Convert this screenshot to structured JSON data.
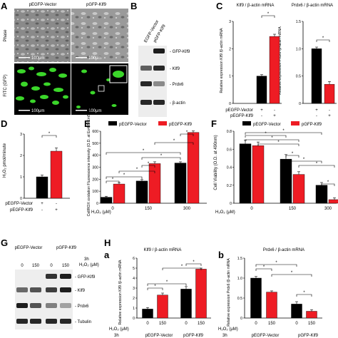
{
  "panels": {
    "A": {
      "letter": "A",
      "col_labels": [
        "pEGFP-Vector",
        "pGFP-Klf9"
      ],
      "row_labels": [
        "Phase",
        "FITC (GFP)"
      ],
      "scale_bar": "100μm"
    },
    "B": {
      "letter": "B",
      "lanes": [
        "EGFP-Vector",
        "pGFP-Klf9"
      ],
      "bands": [
        "GFP-Klf9",
        "Klf9",
        "Prdx6",
        "β-actin"
      ]
    },
    "C": {
      "letter": "C",
      "charts": [
        {
          "title": "Klf9 / β-actin mRNA",
          "ylabel": "Relative expression Klf9 /β-actin mRNA",
          "ylim": [
            0,
            3
          ],
          "yticks": [
            "0",
            "1",
            "2",
            "3"
          ],
          "values": [
            1.0,
            2.45
          ],
          "errors": [
            0.05,
            0.08
          ],
          "colors": [
            "#000000",
            "#ee1c24"
          ],
          "sig": "*"
        },
        {
          "title": "Prdx6 / β-actin mRNA",
          "ylabel": "Relative expression Prdx6 /β-actin mRNA",
          "ylim": [
            0,
            1.5
          ],
          "yticks": [
            "0",
            "0.5",
            "1.0",
            "1.5"
          ],
          "values": [
            1.0,
            0.35
          ],
          "errors": [
            0.03,
            0.05
          ],
          "colors": [
            "#000000",
            "#ee1c24"
          ],
          "sig": "*"
        }
      ],
      "rows": [
        "pEGFP-Vector",
        "pEGFP-Klf9"
      ],
      "signs": [
        [
          "+",
          "-"
        ],
        [
          "-",
          "+"
        ]
      ]
    },
    "D": {
      "letter": "D",
      "ylabel": "H₂O₂ pmol/minute",
      "ylim": [
        0,
        3
      ],
      "yticks": [
        "0",
        "1",
        "2",
        "3"
      ],
      "values": [
        1.0,
        2.2
      ],
      "errors": [
        0.08,
        0.15
      ],
      "colors": [
        "#000000",
        "#ee1c24"
      ],
      "sig": "*",
      "rows": [
        "pEGFP-Vector",
        "pEGFP-Klf9"
      ],
      "signs": [
        [
          "+",
          "-"
        ],
        [
          "-",
          "+"
        ]
      ]
    },
    "E": {
      "letter": "E",
      "legend": [
        "pEGFP-Vector",
        "pEGFP-Klf9"
      ],
      "ylabel": "CellROX oxidation Fluorescence intensity (O.D. at Ex485/Em520)",
      "ylim": [
        0,
        600
      ],
      "yticks": [
        "0",
        "100",
        "200",
        "300",
        "400",
        "500",
        "600"
      ],
      "xlabel": "H₂O₂ (μM)",
      "categories": [
        "0",
        "150",
        "300"
      ],
      "series": [
        {
          "name": "pEGFP-Vector",
          "color": "#000000",
          "values": [
            50,
            185,
            335
          ],
          "errors": [
            8,
            12,
            10
          ]
        },
        {
          "name": "pEGFP-Klf9",
          "color": "#ee1c24",
          "values": [
            160,
            330,
            590
          ],
          "errors": [
            12,
            15,
            12
          ]
        }
      ],
      "sig": "*"
    },
    "F": {
      "letter": "F",
      "legend": [
        "pEGFP-Vector",
        "pGFP-Klf9"
      ],
      "ylabel": "Cell Viability (O.D. at 490nm)",
      "ylim": [
        0,
        0.8
      ],
      "yticks": [
        "0",
        "0.2",
        "0.4",
        "0.6",
        "0.8"
      ],
      "xlabel": "H₂O₂ (μM)",
      "categories": [
        "0",
        "150",
        "300"
      ],
      "series": [
        {
          "name": "pEGFP-Vector",
          "color": "#000000",
          "values": [
            0.66,
            0.49,
            0.2
          ],
          "errors": [
            0.04,
            0.05,
            0.03
          ]
        },
        {
          "name": "pGFP-Klf9",
          "color": "#ee1c24",
          "values": [
            0.64,
            0.32,
            0.04
          ],
          "errors": [
            0.04,
            0.03,
            0.02
          ]
        }
      ],
      "sig": "*"
    },
    "G": {
      "letter": "G",
      "groups": [
        "pEGFP-Vector",
        "pGFP-Klf9"
      ],
      "time": "3h",
      "conc_label": "H₂O₂ (μM)",
      "concs": [
        "0",
        "150",
        "0",
        "150"
      ],
      "bands": [
        "GFP-Klf9",
        "Klf9",
        "Prdx6",
        "Tubulin"
      ]
    },
    "H": {
      "letter": "H",
      "sub": [
        {
          "letter": "a",
          "title": "Klf9 / β-actin mRNA",
          "ylabel": "Relative expression Klf9 /β-actin mRNA",
          "ylim": [
            0,
            6
          ],
          "yticks": [
            "0",
            "1",
            "2",
            "3",
            "4",
            "5",
            "6"
          ],
          "categories": [
            "0",
            "150",
            "0",
            "150"
          ],
          "values": [
            0.9,
            2.3,
            2.9,
            4.9
          ],
          "errors": [
            0.15,
            0.2,
            0.25,
            0.1
          ],
          "colors": [
            "#000000",
            "#ee1c24",
            "#000000",
            "#ee1c24"
          ],
          "groups": [
            "pEGFP-Vector",
            "pGFP-Klf9"
          ],
          "time": "3h",
          "xlabel": "H₂O₂ (μM)",
          "sig": "*"
        },
        {
          "letter": "b",
          "title": "Prdx6 / β-actin mRNA",
          "ylabel": "Relative expression Prdx6 /β-actin mRNA",
          "ylim": [
            0,
            1.5
          ],
          "yticks": [
            "0",
            "0.5",
            "1.0",
            "1.5"
          ],
          "categories": [
            "0",
            "150",
            "0",
            "150"
          ],
          "values": [
            1.0,
            0.65,
            0.35,
            0.17
          ],
          "errors": [
            0.04,
            0.03,
            0.06,
            0.04
          ],
          "colors": [
            "#000000",
            "#ee1c24",
            "#000000",
            "#ee1c24"
          ],
          "groups": [
            "pEGFP-Vector",
            "pGFP-Klf9"
          ],
          "time": "3h",
          "xlabel": "H₂O₂ (μM)",
          "sig": "*"
        }
      ]
    }
  }
}
